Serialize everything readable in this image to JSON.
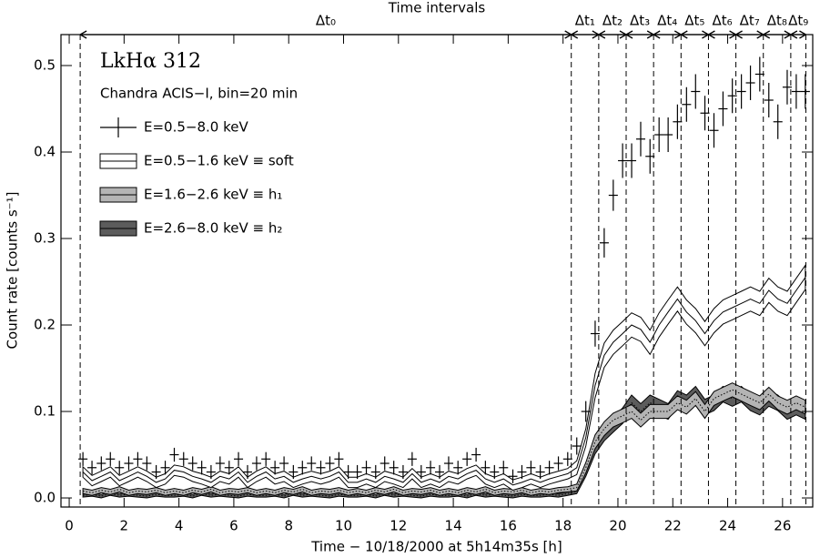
{
  "chart_data": {
    "type": "line",
    "title": "Time intervals",
    "annotations": [
      "LkHα 312",
      "Chandra ACIS−I, bin=20 min"
    ],
    "xlabel": "Time − 10/18/2000 at 5h14m35s [h]",
    "ylabel": "Count rate [counts s⁻¹]",
    "xlim": [
      -0.3,
      27.1
    ],
    "ylim": [
      -0.0105,
      0.5358
    ],
    "xticks": [
      0,
      2,
      4,
      6,
      8,
      10,
      12,
      14,
      16,
      18,
      20,
      22,
      24,
      26
    ],
    "yticks": [
      {
        "value": 0,
        "label": "0.0"
      },
      0.1,
      0.2,
      0.3,
      0.4,
      0.5
    ],
    "intervals": [
      {
        "label": "Δt₀",
        "start": 0.4,
        "end": 18.3
      },
      {
        "label": "Δt₁",
        "start": 18.3,
        "end": 19.3
      },
      {
        "label": "Δt₂",
        "start": 19.3,
        "end": 20.3
      },
      {
        "label": "Δt₃",
        "start": 20.3,
        "end": 21.3
      },
      {
        "label": "Δt₄",
        "start": 21.3,
        "end": 22.3
      },
      {
        "label": "Δt₅",
        "start": 22.3,
        "end": 23.3
      },
      {
        "label": "Δt₆",
        "start": 23.3,
        "end": 24.3
      },
      {
        "label": "Δt₇",
        "start": 24.3,
        "end": 25.3
      },
      {
        "label": "Δt₈",
        "start": 25.3,
        "end": 26.3
      },
      {
        "label": "Δt₉",
        "start": 26.3,
        "end": 26.85
      }
    ],
    "x": [
      0.5,
      0.83,
      1.17,
      1.5,
      1.83,
      2.17,
      2.5,
      2.83,
      3.17,
      3.5,
      3.83,
      4.17,
      4.5,
      4.83,
      5.17,
      5.5,
      5.83,
      6.17,
      6.5,
      6.83,
      7.17,
      7.5,
      7.83,
      8.17,
      8.5,
      8.83,
      9.17,
      9.5,
      9.83,
      10.17,
      10.5,
      10.83,
      11.17,
      11.5,
      11.83,
      12.17,
      12.5,
      12.83,
      13.17,
      13.5,
      13.83,
      14.17,
      14.5,
      14.83,
      15.17,
      15.5,
      15.83,
      16.17,
      16.5,
      16.83,
      17.17,
      17.5,
      17.83,
      18.17,
      18.5,
      18.83,
      19.17,
      19.5,
      19.83,
      20.17,
      20.5,
      20.83,
      21.17,
      21.5,
      21.83,
      22.17,
      22.5,
      22.83,
      23.17,
      23.5,
      23.83,
      24.17,
      24.5,
      24.83,
      25.17,
      25.5,
      25.83,
      26.17,
      26.5,
      26.83
    ],
    "series": [
      {
        "name": "E=2.6−8.0 keV ≡ h₂",
        "style": "band",
        "color": "#5c5c5c",
        "values": [
          0.003,
          0.004,
          0.002,
          0.005,
          0.003,
          0.004,
          0.003,
          0.002,
          0.004,
          0.003,
          0.003,
          0.004,
          0.002,
          0.005,
          0.003,
          0.004,
          0.003,
          0.002,
          0.004,
          0.003,
          0.003,
          0.004,
          0.002,
          0.005,
          0.003,
          0.004,
          0.003,
          0.002,
          0.004,
          0.003,
          0.003,
          0.004,
          0.002,
          0.005,
          0.003,
          0.004,
          0.003,
          0.002,
          0.004,
          0.003,
          0.003,
          0.004,
          0.002,
          0.005,
          0.003,
          0.004,
          0.003,
          0.002,
          0.004,
          0.003,
          0.003,
          0.004,
          0.003,
          0.005,
          0.008,
          0.03,
          0.06,
          0.075,
          0.085,
          0.095,
          0.11,
          0.1,
          0.11,
          0.105,
          0.1,
          0.115,
          0.11,
          0.12,
          0.105,
          0.11,
          0.12,
          0.115,
          0.12,
          0.11,
          0.105,
          0.115,
          0.11,
          0.1,
          0.105,
          0.1
        ],
        "errors": [
          0.002,
          0.002,
          0.002,
          0.002,
          0.002,
          0.002,
          0.002,
          0.002,
          0.002,
          0.002,
          0.002,
          0.002,
          0.002,
          0.002,
          0.002,
          0.002,
          0.002,
          0.002,
          0.002,
          0.002,
          0.002,
          0.002,
          0.002,
          0.002,
          0.002,
          0.002,
          0.002,
          0.002,
          0.002,
          0.002,
          0.002,
          0.002,
          0.002,
          0.002,
          0.002,
          0.002,
          0.002,
          0.002,
          0.002,
          0.002,
          0.002,
          0.002,
          0.002,
          0.002,
          0.002,
          0.002,
          0.002,
          0.002,
          0.002,
          0.002,
          0.002,
          0.002,
          0.002,
          0.002,
          0.003,
          0.005,
          0.009,
          0.009,
          0.009,
          0.009,
          0.009,
          0.009,
          0.009,
          0.009,
          0.009,
          0.009,
          0.009,
          0.009,
          0.009,
          0.009,
          0.009,
          0.009,
          0.009,
          0.009,
          0.009,
          0.009,
          0.009,
          0.009,
          0.009,
          0.009
        ]
      },
      {
        "name": "E=1.6−2.6 keV ≡ h₁",
        "style": "band",
        "color": "#b4b4b4",
        "values": [
          0.008,
          0.006,
          0.009,
          0.007,
          0.01,
          0.006,
          0.008,
          0.007,
          0.009,
          0.006,
          0.008,
          0.006,
          0.009,
          0.007,
          0.01,
          0.006,
          0.008,
          0.007,
          0.009,
          0.006,
          0.008,
          0.006,
          0.009,
          0.007,
          0.01,
          0.006,
          0.008,
          0.007,
          0.009,
          0.006,
          0.008,
          0.006,
          0.009,
          0.007,
          0.01,
          0.006,
          0.008,
          0.007,
          0.009,
          0.006,
          0.008,
          0.006,
          0.009,
          0.007,
          0.01,
          0.006,
          0.008,
          0.007,
          0.009,
          0.006,
          0.008,
          0.007,
          0.009,
          0.01,
          0.012,
          0.035,
          0.065,
          0.08,
          0.09,
          0.095,
          0.1,
          0.09,
          0.1,
          0.1,
          0.1,
          0.11,
          0.105,
          0.115,
          0.1,
          0.115,
          0.12,
          0.125,
          0.12,
          0.115,
          0.11,
          0.12,
          0.11,
          0.105,
          0.11,
          0.105
        ],
        "errors": [
          0.003,
          0.003,
          0.003,
          0.003,
          0.003,
          0.003,
          0.003,
          0.003,
          0.003,
          0.003,
          0.003,
          0.003,
          0.003,
          0.003,
          0.003,
          0.003,
          0.003,
          0.003,
          0.003,
          0.003,
          0.003,
          0.003,
          0.003,
          0.003,
          0.003,
          0.003,
          0.003,
          0.003,
          0.003,
          0.003,
          0.003,
          0.003,
          0.003,
          0.003,
          0.003,
          0.003,
          0.003,
          0.003,
          0.003,
          0.003,
          0.003,
          0.003,
          0.003,
          0.003,
          0.003,
          0.003,
          0.003,
          0.003,
          0.003,
          0.003,
          0.003,
          0.003,
          0.003,
          0.003,
          0.004,
          0.006,
          0.008,
          0.008,
          0.008,
          0.008,
          0.008,
          0.008,
          0.008,
          0.008,
          0.008,
          0.008,
          0.008,
          0.008,
          0.008,
          0.008,
          0.008,
          0.008,
          0.008,
          0.008,
          0.008,
          0.008,
          0.008,
          0.008,
          0.008,
          0.008
        ]
      },
      {
        "name": "E=0.5−1.6 keV ≡ soft",
        "style": "band",
        "color": "#ffffff",
        "values": [
          0.03,
          0.02,
          0.025,
          0.03,
          0.02,
          0.025,
          0.03,
          0.025,
          0.018,
          0.022,
          0.032,
          0.03,
          0.025,
          0.022,
          0.018,
          0.025,
          0.022,
          0.03,
          0.018,
          0.025,
          0.03,
          0.022,
          0.025,
          0.018,
          0.022,
          0.025,
          0.022,
          0.025,
          0.03,
          0.018,
          0.018,
          0.022,
          0.018,
          0.025,
          0.022,
          0.018,
          0.028,
          0.018,
          0.022,
          0.018,
          0.025,
          0.022,
          0.028,
          0.032,
          0.022,
          0.018,
          0.022,
          0.015,
          0.018,
          0.022,
          0.018,
          0.022,
          0.025,
          0.028,
          0.035,
          0.07,
          0.13,
          0.165,
          0.18,
          0.19,
          0.2,
          0.195,
          0.18,
          0.2,
          0.215,
          0.23,
          0.215,
          0.205,
          0.19,
          0.205,
          0.215,
          0.22,
          0.225,
          0.23,
          0.225,
          0.24,
          0.23,
          0.225,
          0.24,
          0.255
        ],
        "errors": [
          0.006,
          0.006,
          0.006,
          0.006,
          0.006,
          0.006,
          0.006,
          0.006,
          0.006,
          0.006,
          0.006,
          0.006,
          0.006,
          0.006,
          0.006,
          0.006,
          0.006,
          0.006,
          0.006,
          0.006,
          0.006,
          0.006,
          0.006,
          0.006,
          0.006,
          0.006,
          0.006,
          0.006,
          0.006,
          0.006,
          0.006,
          0.006,
          0.006,
          0.006,
          0.006,
          0.006,
          0.006,
          0.006,
          0.006,
          0.006,
          0.006,
          0.006,
          0.006,
          0.006,
          0.006,
          0.006,
          0.006,
          0.006,
          0.006,
          0.006,
          0.006,
          0.006,
          0.006,
          0.006,
          0.008,
          0.01,
          0.014,
          0.014,
          0.014,
          0.014,
          0.014,
          0.014,
          0.014,
          0.014,
          0.014,
          0.014,
          0.014,
          0.014,
          0.014,
          0.014,
          0.014,
          0.014,
          0.014,
          0.014,
          0.014,
          0.014,
          0.014,
          0.014,
          0.014,
          0.014
        ]
      },
      {
        "name": "E=0.5−8.0 keV",
        "style": "crosses",
        "color": "#000000",
        "values": [
          0.045,
          0.035,
          0.04,
          0.045,
          0.035,
          0.04,
          0.045,
          0.04,
          0.03,
          0.035,
          0.05,
          0.045,
          0.04,
          0.035,
          0.03,
          0.04,
          0.035,
          0.045,
          0.03,
          0.04,
          0.045,
          0.035,
          0.04,
          0.03,
          0.035,
          0.04,
          0.035,
          0.04,
          0.045,
          0.03,
          0.03,
          0.035,
          0.03,
          0.04,
          0.035,
          0.03,
          0.045,
          0.03,
          0.035,
          0.03,
          0.04,
          0.035,
          0.045,
          0.05,
          0.035,
          0.03,
          0.035,
          0.025,
          0.03,
          0.035,
          0.03,
          0.035,
          0.04,
          0.045,
          0.06,
          0.1,
          0.19,
          0.295,
          0.35,
          0.39,
          0.39,
          0.415,
          0.395,
          0.42,
          0.42,
          0.435,
          0.455,
          0.47,
          0.445,
          0.425,
          0.45,
          0.465,
          0.47,
          0.48,
          0.49,
          0.46,
          0.435,
          0.475,
          0.47,
          0.47
        ],
        "errors": [
          0.008,
          0.008,
          0.008,
          0.008,
          0.008,
          0.008,
          0.008,
          0.008,
          0.008,
          0.008,
          0.008,
          0.008,
          0.008,
          0.008,
          0.008,
          0.008,
          0.008,
          0.008,
          0.008,
          0.008,
          0.008,
          0.008,
          0.008,
          0.008,
          0.008,
          0.008,
          0.008,
          0.008,
          0.008,
          0.008,
          0.008,
          0.008,
          0.008,
          0.008,
          0.008,
          0.008,
          0.008,
          0.008,
          0.008,
          0.008,
          0.008,
          0.008,
          0.008,
          0.008,
          0.008,
          0.008,
          0.008,
          0.008,
          0.008,
          0.008,
          0.008,
          0.008,
          0.008,
          0.008,
          0.01,
          0.012,
          0.015,
          0.017,
          0.018,
          0.02,
          0.02,
          0.02,
          0.02,
          0.02,
          0.02,
          0.02,
          0.02,
          0.02,
          0.02,
          0.02,
          0.02,
          0.02,
          0.02,
          0.02,
          0.02,
          0.02,
          0.02,
          0.02,
          0.02,
          0.02
        ]
      }
    ],
    "legend_order": [
      3,
      2,
      1,
      0
    ]
  }
}
